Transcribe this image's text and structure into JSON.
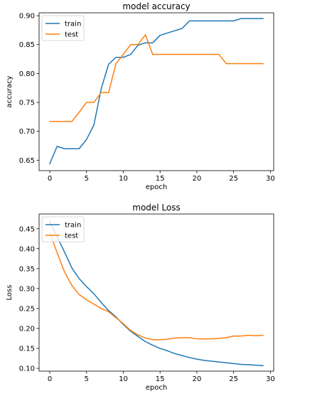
{
  "chart_data": [
    {
      "type": "line",
      "title": "model accuracy",
      "xlabel": "epoch",
      "ylabel": "accuracy",
      "xlim": [
        -1.45,
        30.45
      ],
      "ylim": [
        0.632,
        0.905
      ],
      "xticks": [
        0,
        5,
        10,
        15,
        20,
        25,
        30
      ],
      "yticks": [
        0.65,
        0.7,
        0.75,
        0.8,
        0.85,
        0.9
      ],
      "ytick_format": 2,
      "grid": false,
      "legend": "upper-left",
      "series": [
        {
          "name": "train",
          "color": "#1f77b4",
          "x": [
            0,
            1,
            2,
            3,
            4,
            5,
            6,
            7,
            8,
            9,
            10,
            11,
            12,
            13,
            14,
            15,
            16,
            17,
            18,
            19,
            20,
            21,
            22,
            23,
            24,
            25,
            26,
            27,
            28,
            29
          ],
          "values": [
            0.644,
            0.674,
            0.67,
            0.67,
            0.67,
            0.686,
            0.711,
            0.774,
            0.816,
            0.828,
            0.828,
            0.833,
            0.849,
            0.853,
            0.853,
            0.866,
            0.87,
            0.874,
            0.878,
            0.891,
            0.891,
            0.891,
            0.891,
            0.891,
            0.891,
            0.891,
            0.895,
            0.895,
            0.895,
            0.895
          ]
        },
        {
          "name": "test",
          "color": "#ff7f0e",
          "x": [
            0,
            1,
            2,
            3,
            4,
            5,
            6,
            7,
            8,
            9,
            10,
            11,
            12,
            13,
            14,
            15,
            16,
            17,
            18,
            19,
            20,
            21,
            22,
            23,
            24,
            25,
            26,
            27,
            28,
            29
          ],
          "values": [
            0.717,
            0.717,
            0.717,
            0.717,
            0.733,
            0.75,
            0.75,
            0.767,
            0.767,
            0.817,
            0.833,
            0.85,
            0.85,
            0.867,
            0.833,
            0.833,
            0.833,
            0.833,
            0.833,
            0.833,
            0.833,
            0.833,
            0.833,
            0.833,
            0.817,
            0.817,
            0.817,
            0.817,
            0.817,
            0.817
          ]
        }
      ]
    },
    {
      "type": "line",
      "title": "model Loss",
      "xlabel": "epoch",
      "ylabel": "Loss",
      "xlim": [
        -1.45,
        30.45
      ],
      "ylim": [
        0.093,
        0.487
      ],
      "xticks": [
        0,
        5,
        10,
        15,
        20,
        25,
        30
      ],
      "yticks": [
        0.1,
        0.15,
        0.2,
        0.25,
        0.3,
        0.35,
        0.4,
        0.45
      ],
      "ytick_format": 2,
      "grid": false,
      "legend": "upper-left",
      "series": [
        {
          "name": "train",
          "color": "#1f77b4",
          "x": [
            0,
            1,
            2,
            3,
            4,
            5,
            6,
            7,
            8,
            9,
            10,
            11,
            12,
            13,
            14,
            15,
            16,
            17,
            18,
            19,
            20,
            21,
            22,
            23,
            24,
            25,
            26,
            27,
            28,
            29
          ],
          "values": [
            0.468,
            0.43,
            0.392,
            0.352,
            0.325,
            0.305,
            0.287,
            0.265,
            0.245,
            0.229,
            0.21,
            0.193,
            0.18,
            0.167,
            0.158,
            0.15,
            0.144,
            0.137,
            0.132,
            0.127,
            0.123,
            0.12,
            0.118,
            0.116,
            0.114,
            0.112,
            0.11,
            0.109,
            0.108,
            0.107
          ]
        },
        {
          "name": "test",
          "color": "#ff7f0e",
          "x": [
            0,
            1,
            2,
            3,
            4,
            5,
            6,
            7,
            8,
            9,
            10,
            11,
            12,
            13,
            14,
            15,
            16,
            17,
            18,
            19,
            20,
            21,
            22,
            23,
            24,
            25,
            26,
            27,
            28,
            29
          ],
          "values": [
            0.44,
            0.39,
            0.342,
            0.308,
            0.285,
            0.272,
            0.261,
            0.25,
            0.242,
            0.227,
            0.212,
            0.195,
            0.184,
            0.176,
            0.172,
            0.172,
            0.173,
            0.176,
            0.177,
            0.177,
            0.174,
            0.174,
            0.174,
            0.175,
            0.177,
            0.181,
            0.181,
            0.183,
            0.182,
            0.183
          ]
        }
      ]
    }
  ]
}
